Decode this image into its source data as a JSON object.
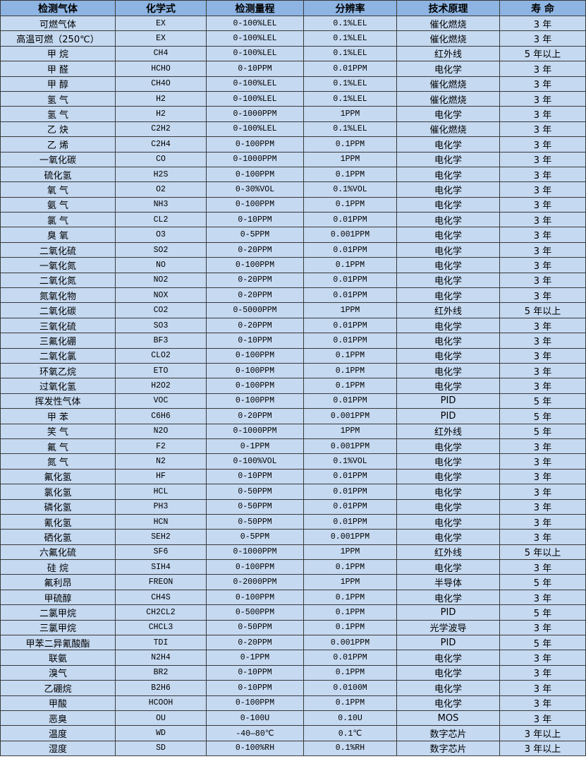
{
  "headers": [
    "检测气体",
    "化学式",
    "检测量程",
    "分辨率",
    "技术原理",
    "寿 命"
  ],
  "colors": {
    "header_bg": "#8DB4E2",
    "row_bg": "#C5D9F1",
    "border": "#3a3a3a"
  },
  "rows": [
    [
      "可燃气体",
      "EX",
      "0-100%LEL",
      "0.1%LEL",
      "催化燃烧",
      "3 年"
    ],
    [
      "高温可燃（250℃）",
      "EX",
      "0-100%LEL",
      "0.1%LEL",
      "催化燃烧",
      "3 年"
    ],
    [
      "甲 烷",
      "CH4",
      "0-100%LEL",
      "0.1%LEL",
      "红外线",
      "5 年以上"
    ],
    [
      "甲 醛",
      "HCHO",
      "0-10PPM",
      "0.01PPM",
      "电化学",
      "3 年"
    ],
    [
      "甲 醇",
      "CH4O",
      "0-100%LEL",
      "0.1%LEL",
      "催化燃烧",
      "3 年"
    ],
    [
      "氢 气",
      "H2",
      "0-100%LEL",
      "0.1%LEL",
      "催化燃烧",
      "3 年"
    ],
    [
      "氢 气",
      "H2",
      "0-1000PPM",
      "1PPM",
      "电化学",
      "3 年"
    ],
    [
      "乙 炔",
      "C2H2",
      "0-100%LEL",
      "0.1%LEL",
      "催化燃烧",
      "3 年"
    ],
    [
      "乙 烯",
      "C2H4",
      "0-100PPM",
      "0.1PPM",
      "电化学",
      "3 年"
    ],
    [
      "一氧化碳",
      "CO",
      "0-1000PPM",
      "1PPM",
      "电化学",
      "3 年"
    ],
    [
      "硫化氢",
      "H2S",
      "0-100PPM",
      "0.1PPM",
      "电化学",
      "3 年"
    ],
    [
      "氧 气",
      "O2",
      "0-30%VOL",
      "0.1%VOL",
      "电化学",
      "3 年"
    ],
    [
      "氨 气",
      "NH3",
      "0-100PPM",
      "0.1PPM",
      "电化学",
      "3 年"
    ],
    [
      "氯 气",
      "CL2",
      "0-10PPM",
      "0.01PPM",
      "电化学",
      "3 年"
    ],
    [
      "臭 氧",
      "O3",
      "0-5PPM",
      "0.001PPM",
      "电化学",
      "3 年"
    ],
    [
      "二氧化硫",
      "SO2",
      "0-20PPM",
      "0.01PPM",
      "电化学",
      "3 年"
    ],
    [
      "一氧化氮",
      "NO",
      "0-100PPM",
      "0.1PPM",
      "电化学",
      "3 年"
    ],
    [
      "二氧化氮",
      "NO2",
      "0-20PPM",
      "0.01PPM",
      "电化学",
      "3 年"
    ],
    [
      "氮氧化物",
      "NOX",
      "0-20PPM",
      "0.01PPM",
      "电化学",
      "3 年"
    ],
    [
      "二氧化碳",
      "CO2",
      "0-5000PPM",
      "1PPM",
      "红外线",
      "5 年以上"
    ],
    [
      "三氧化硫",
      "SO3",
      "0-20PPM",
      "0.01PPM",
      "电化学",
      "3 年"
    ],
    [
      "三氟化硼",
      "BF3",
      "0-10PPM",
      "0.01PPM",
      "电化学",
      "3 年"
    ],
    [
      "二氧化氯",
      "CLO2",
      "0-100PPM",
      "0.1PPM",
      "电化学",
      "3 年"
    ],
    [
      "环氧乙烷",
      "ETO",
      "0-100PPM",
      "0.1PPM",
      "电化学",
      "3 年"
    ],
    [
      "过氧化氢",
      "H2O2",
      "0-100PPM",
      "0.1PPM",
      "电化学",
      "3 年"
    ],
    [
      "挥发性气体",
      "VOC",
      "0-100PPM",
      "0.01PPM",
      "PID",
      "5 年"
    ],
    [
      "甲 苯",
      "C6H6",
      "0-20PPM",
      "0.001PPM",
      "PID",
      "5 年"
    ],
    [
      "笑 气",
      "N2O",
      "0-1000PPM",
      "1PPM",
      "红外线",
      "5 年"
    ],
    [
      "氟 气",
      "F2",
      "0-1PPM",
      "0.001PPM",
      "电化学",
      "3 年"
    ],
    [
      "氮 气",
      "N2",
      "0-100%VOL",
      "0.1%VOL",
      "电化学",
      "3 年"
    ],
    [
      "氟化氢",
      "HF",
      "0-10PPM",
      "0.01PPM",
      "电化学",
      "3 年"
    ],
    [
      "氯化氢",
      "HCL",
      "0-50PPM",
      "0.01PPM",
      "电化学",
      "3 年"
    ],
    [
      "磷化氢",
      "PH3",
      "0-50PPM",
      "0.01PPM",
      "电化学",
      "3 年"
    ],
    [
      "氰化氢",
      "HCN",
      "0-50PPM",
      "0.01PPM",
      "电化学",
      "3 年"
    ],
    [
      "硒化氢",
      "SEH2",
      "0-5PPM",
      "0.001PPM",
      "电化学",
      "3 年"
    ],
    [
      "六氟化硫",
      "SF6",
      "0-1000PPM",
      "1PPM",
      "红外线",
      "5 年以上"
    ],
    [
      "硅 烷",
      "SIH4",
      "0-100PPM",
      "0.1PPM",
      "电化学",
      "3 年"
    ],
    [
      "氟利昂",
      "FREON",
      "0-2000PPM",
      "1PPM",
      "半导体",
      "5 年"
    ],
    [
      "甲硫醇",
      "CH4S",
      "0-100PPM",
      "0.1PPM",
      "电化学",
      "3 年"
    ],
    [
      "二氯甲烷",
      "CH2CL2",
      "0-500PPM",
      "0.1PPM",
      "PID",
      "5 年"
    ],
    [
      "三氯甲烷",
      "CHCL3",
      "0-50PPM",
      "0.1PPM",
      "光学波导",
      "3 年"
    ],
    [
      "甲苯二异氰酸酯",
      "TDI",
      "0-20PPM",
      "0.001PPM",
      "PID",
      "5 年"
    ],
    [
      "联氨",
      "N2H4",
      "0-1PPM",
      "0.01PPM",
      "电化学",
      "3 年"
    ],
    [
      "溴气",
      "BR2",
      "0-10PPM",
      "0.1PPM",
      "电化学",
      "3 年"
    ],
    [
      "乙硼烷",
      "B2H6",
      "0-10PPM",
      "0.0100M",
      "电化学",
      "3 年"
    ],
    [
      "甲酸",
      "HCOOH",
      "0-100PPM",
      "0.1PPM",
      "电化学",
      "3 年"
    ],
    [
      "恶臭",
      "OU",
      "0-100U",
      "0.10U",
      "MOS",
      "3 年"
    ],
    [
      "温度",
      "WD",
      "-40—80℃",
      "0.1℃",
      "数字芯片",
      "3 年以上"
    ],
    [
      "湿度",
      "SD",
      "0-100%RH",
      "0.1%RH",
      "数字芯片",
      "3 年以上"
    ]
  ]
}
